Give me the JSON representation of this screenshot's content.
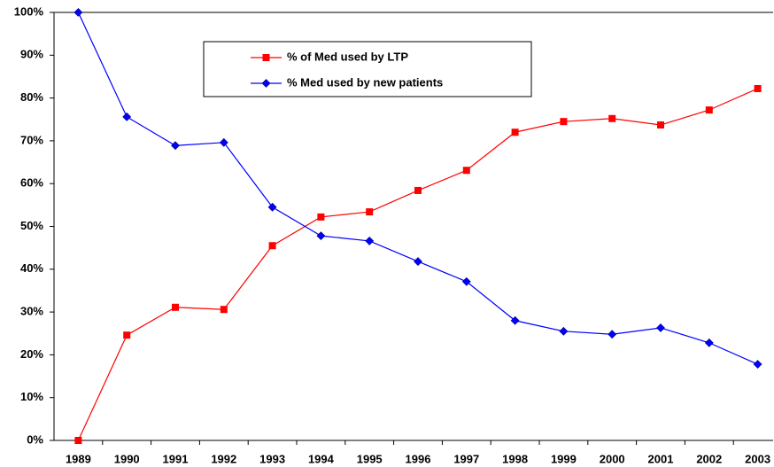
{
  "chart_data": {
    "type": "line",
    "categories": [
      "1989",
      "1990",
      "1991",
      "1992",
      "1993",
      "1994",
      "1995",
      "1996",
      "1997",
      "1998",
      "1999",
      "2000",
      "2001",
      "2002",
      "2003"
    ],
    "series": [
      {
        "name": "% of Med used by LTP",
        "color": "#ff0000",
        "marker": "square",
        "values": [
          0,
          24.6,
          31.1,
          30.6,
          45.5,
          52.2,
          53.4,
          58.4,
          63.1,
          72.0,
          74.5,
          75.2,
          73.7,
          77.2,
          82.2
        ]
      },
      {
        "name": "% Med used by new patients",
        "color": "#0000ff",
        "marker": "diamond",
        "values": [
          100,
          75.6,
          68.9,
          69.6,
          54.5,
          47.8,
          46.6,
          41.8,
          37.1,
          28.0,
          25.5,
          24.8,
          26.3,
          22.8,
          17.8
        ]
      }
    ],
    "ylim": [
      0,
      100
    ],
    "yticks": [
      {
        "value": 0,
        "label": "0%"
      },
      {
        "value": 10,
        "label": "10%"
      },
      {
        "value": 20,
        "label": "20%"
      },
      {
        "value": 30,
        "label": "30%"
      },
      {
        "value": 40,
        "label": "40%"
      },
      {
        "value": 50,
        "label": "50%"
      },
      {
        "value": 60,
        "label": "60%"
      },
      {
        "value": 70,
        "label": "70%"
      },
      {
        "value": 80,
        "label": "80%"
      },
      {
        "value": 90,
        "label": "90%"
      },
      {
        "value": 100,
        "label": "100%"
      }
    ],
    "legend": "top-center"
  }
}
